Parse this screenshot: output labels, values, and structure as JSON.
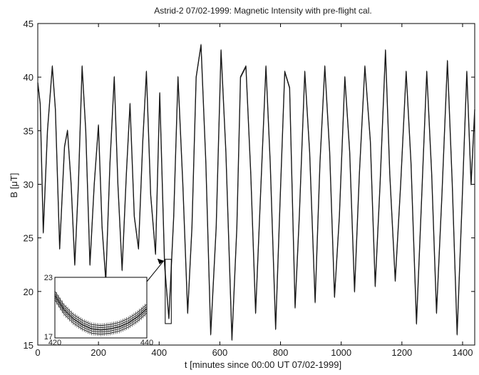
{
  "chart_data": {
    "type": "line",
    "title": "Astrid-2 07/02-1999: Magnetic Intensity with pre-flight cal.",
    "xlabel": "t [minutes since 00:00 UT 07/02-1999]",
    "ylabel": "B [μT]",
    "xlim": [
      0,
      1440
    ],
    "ylim": [
      15,
      45
    ],
    "xticks": [
      0,
      200,
      400,
      600,
      800,
      1000,
      1200,
      1400
    ],
    "yticks": [
      15,
      20,
      25,
      30,
      35,
      40,
      45
    ],
    "grid": false,
    "series": [
      {
        "color": "#1a1a1a",
        "x": [
          0,
          8,
          18,
          32,
          48,
          58,
          72,
          88,
          98,
          110,
          122,
          134,
          146,
          158,
          172,
          186,
          200,
          212,
          224,
          238,
          252,
          264,
          278,
          292,
          304,
          318,
          332,
          346,
          358,
          372,
          388,
          402,
          418,
          432,
          448,
          462,
          478,
          494,
          508,
          522,
          538,
          554,
          570,
          588,
          604,
          620,
          640,
          656,
          668,
          686,
          702,
          718,
          734,
          752,
          766,
          784,
          798,
          814,
          830,
          848,
          862,
          880,
          896,
          914,
          930,
          946,
          962,
          978,
          994,
          1012,
          1028,
          1044,
          1060,
          1078,
          1096,
          1112,
          1128,
          1146,
          1160,
          1178,
          1196,
          1214,
          1230,
          1248,
          1264,
          1282,
          1298,
          1314,
          1332,
          1350,
          1366,
          1382,
          1398,
          1414,
          1428,
          1440
        ],
        "y": [
          39.5,
          37.5,
          25.5,
          35.0,
          41.0,
          37.0,
          24.0,
          33.5,
          35.0,
          30.0,
          22.5,
          30.0,
          41.0,
          35.0,
          22.5,
          30.0,
          35.5,
          26.0,
          21.0,
          32.0,
          40.0,
          30.0,
          22.0,
          31.0,
          37.5,
          27.0,
          24.0,
          34.0,
          40.5,
          29.0,
          23.5,
          38.5,
          22.5,
          17.5,
          27.0,
          40.0,
          30.0,
          18.0,
          26.0,
          40.0,
          43.0,
          32.0,
          16.0,
          26.0,
          42.5,
          33.0,
          15.5,
          26.0,
          40.0,
          41.0,
          31.0,
          18.0,
          29.0,
          41.0,
          32.0,
          16.5,
          28.0,
          40.5,
          39.0,
          18.5,
          27.0,
          40.5,
          33.0,
          19.0,
          32.0,
          41.0,
          33.0,
          19.5,
          27.0,
          40.0,
          33.0,
          20.0,
          31.0,
          41.0,
          34.0,
          20.5,
          30.0,
          42.5,
          31.0,
          21.0,
          30.0,
          40.5,
          32.0,
          17.0,
          28.0,
          40.5,
          31.0,
          18.0,
          29.0,
          41.5,
          30.0,
          16.0,
          28.0,
          40.5,
          30.0,
          37.0
        ]
      }
    ],
    "inset": {
      "xlim": [
        420,
        440
      ],
      "ylim": [
        17,
        23
      ],
      "xticks": [
        420,
        440
      ],
      "yticks": [
        17,
        23
      ],
      "x": [
        420,
        422,
        424,
        426,
        428,
        430,
        432,
        434,
        436,
        438,
        440
      ],
      "y": [
        21.2,
        19.8,
        18.9,
        18.3,
        17.9,
        17.8,
        17.9,
        18.1,
        18.5,
        19.1,
        19.9
      ]
    }
  }
}
